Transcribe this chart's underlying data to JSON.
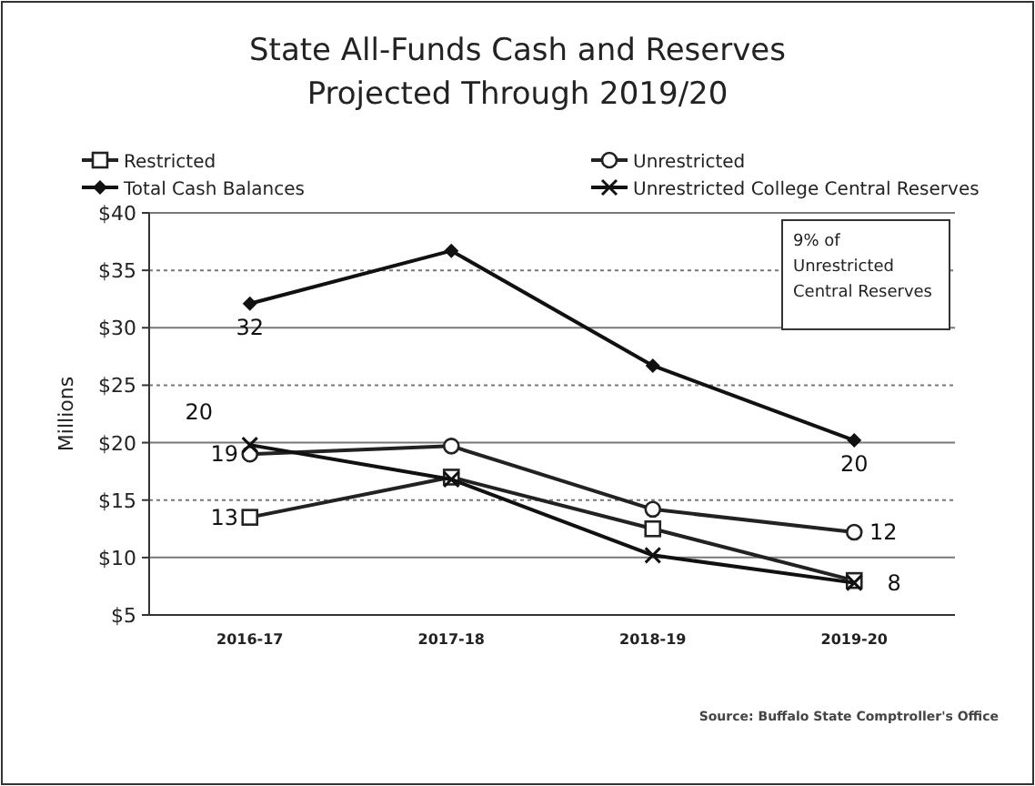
{
  "chart_data": {
    "type": "line",
    "title": "State All-Funds Cash and Reserves\nProjected Through 2019/20",
    "ylabel": "Millions",
    "categories": [
      "2016-17",
      "2017-18",
      "2018-19",
      "2019-20"
    ],
    "series": [
      {
        "name": "Restricted",
        "color": "#222222",
        "marker": "square",
        "values": [
          13.5,
          17,
          12.5,
          8
        ],
        "value_labels": [
          "13",
          null,
          null,
          null
        ]
      },
      {
        "name": "Unrestricted",
        "color": "#222222",
        "marker": "circle",
        "values": [
          19,
          19.7,
          14.2,
          12.2
        ],
        "value_labels": [
          "19",
          null,
          null,
          "12"
        ]
      },
      {
        "name": "Total Cash Balances",
        "color": "#111111",
        "marker": "diamond",
        "values": [
          32.1,
          36.7,
          26.7,
          20.2
        ],
        "value_labels": [
          "32",
          null,
          null,
          "20"
        ]
      },
      {
        "name": "Unrestricted College Central Reserves",
        "color": "#111111",
        "marker": "cross",
        "values": [
          19.8,
          16.8,
          10.2,
          7.8
        ],
        "value_labels": [
          "20",
          null,
          null,
          "8"
        ]
      }
    ],
    "ylim": [
      5,
      40
    ],
    "yticks": [
      {
        "value": 5,
        "label": "$5"
      },
      {
        "value": 10,
        "label": "$10"
      },
      {
        "value": 15,
        "label": "$15"
      },
      {
        "value": 20,
        "label": "$20"
      },
      {
        "value": 25,
        "label": "$25"
      },
      {
        "value": 30,
        "label": "$30"
      },
      {
        "value": 35,
        "label": "$35"
      },
      {
        "value": 40,
        "label": "$40"
      }
    ],
    "grid": "y",
    "legend": "top",
    "line_style": "solid",
    "annotations": [
      "9% of Unrestricted Central Reserves",
      "Source: Buffalo State Comptroller's Office"
    ]
  }
}
